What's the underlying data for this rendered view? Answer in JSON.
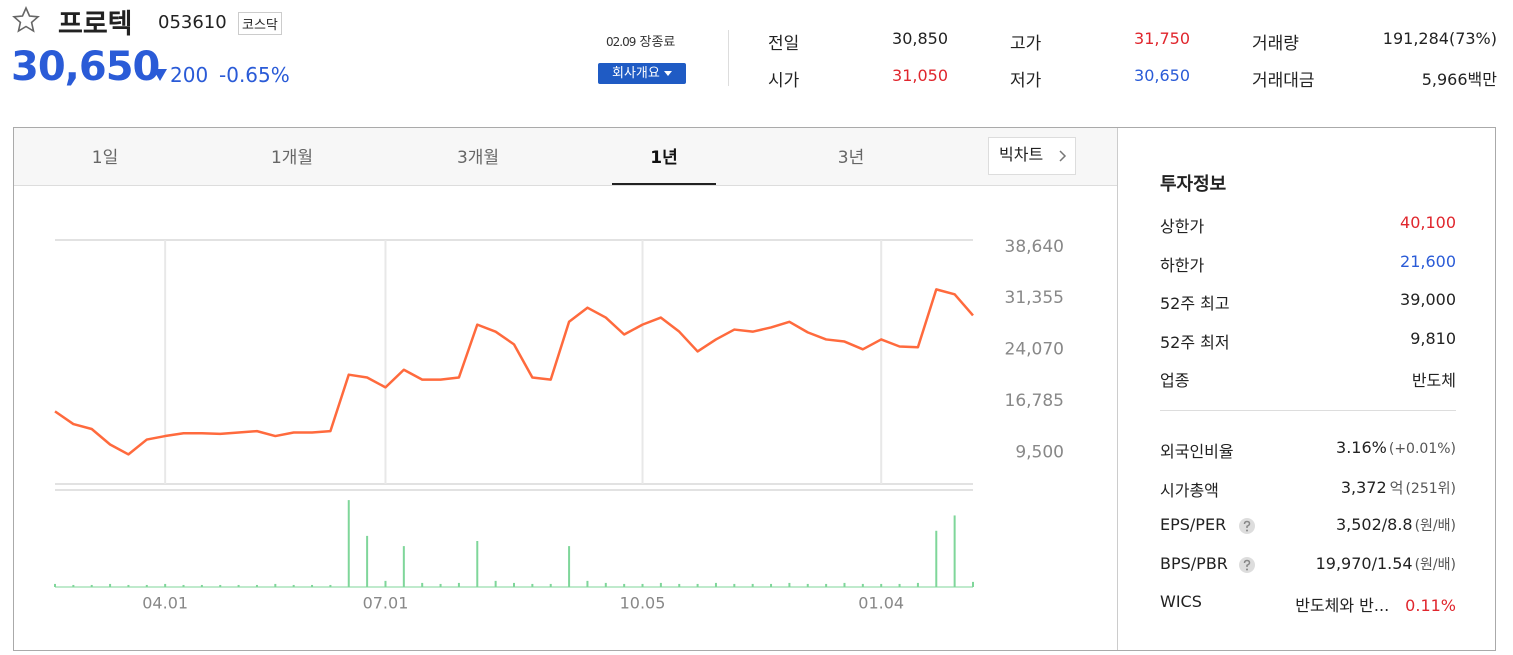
{
  "header": {
    "name": "프로텍",
    "code": "053610",
    "market": "코스닥",
    "price": "30,650",
    "change": "200",
    "change_rate": "-0.65%",
    "date": "02.09",
    "status": "장종료",
    "button": "회사개요"
  },
  "quote": [
    [
      {
        "label": "전일",
        "value": "30,850"
      },
      {
        "label": "고가",
        "value": "31,750",
        "color": "#e0262d"
      },
      {
        "label": "거래량",
        "value": "191,284(73%)"
      }
    ],
    [
      {
        "label": "시가",
        "value": "31,050",
        "color": "#e0262d"
      },
      {
        "label": "저가",
        "value": "30,650",
        "color": "#2a5bd7"
      },
      {
        "label": "거래대금",
        "value": "5,966",
        "unit": "백만"
      }
    ]
  ],
  "tabs": {
    "items": [
      "1일",
      "1개월",
      "3개월",
      "1년",
      "3년"
    ],
    "selected": 3,
    "big_chart": "빅차트"
  },
  "invest": {
    "title": "투자정보",
    "rows": [
      {
        "label": "상한가",
        "value": "40,100",
        "color": "#e0262d"
      },
      {
        "label": "하한가",
        "value": "21,600",
        "color": "#2a5bd7"
      },
      {
        "label": "52주 최고",
        "value": "39,000"
      },
      {
        "label": "52주 최저",
        "value": "9,810"
      },
      {
        "label": "업종",
        "value": "반도체"
      }
    ],
    "rows2": [
      {
        "label": "외국인비율",
        "value": "3.16%",
        "note": "(+0.01%)"
      },
      {
        "label": "시가총액",
        "value": "3,372",
        "unit": "억",
        "note": "(251위)"
      },
      {
        "label": "EPS/PER",
        "help": true,
        "value": "3,502/8.8",
        "note": "(원/배)"
      },
      {
        "label": "BPS/PBR",
        "help": true,
        "value": "19,970/1.54",
        "note": "(원/배)"
      },
      {
        "label": "WICS",
        "value": "반도체와 반...",
        "note": "0.11%",
        "note_color": "#e0262d"
      }
    ]
  },
  "chart_data": {
    "type": "line",
    "categories": [
      null,
      null,
      null,
      null,
      null,
      null,
      "04.01",
      null,
      null,
      null,
      null,
      null,
      null,
      null,
      null,
      null,
      null,
      null,
      "07.01",
      null,
      null,
      null,
      null,
      null,
      null,
      null,
      null,
      null,
      null,
      null,
      null,
      null,
      "10.05",
      null,
      null,
      null,
      null,
      null,
      null,
      null,
      null,
      null,
      null,
      null,
      null,
      "01.04",
      null,
      null,
      null,
      null,
      null
    ],
    "series": [
      {
        "color": "#ff6a3d",
        "values": [
          15300,
          13500,
          12800,
          10600,
          9200,
          11300,
          11800,
          12200,
          12200,
          12100,
          12300,
          12500,
          11800,
          12300,
          12300,
          12500,
          20500,
          20100,
          18700,
          21200,
          19800,
          19800,
          20100,
          27600,
          26600,
          24800,
          20100,
          19800,
          28000,
          30000,
          28600,
          26200,
          27600,
          28600,
          26600,
          23800,
          25500,
          26900,
          26600,
          27200,
          28000,
          26500,
          25500,
          25200,
          24100,
          25500,
          24500,
          24400,
          32600,
          31900,
          28900
        ]
      },
      {
        "color": "#7fd69a",
        "axis": "y2",
        "values": [
          3,
          2,
          2,
          3,
          2,
          2,
          3,
          2,
          2,
          2,
          2,
          2,
          3,
          2,
          2,
          2,
          85,
          50,
          6,
          40,
          4,
          3,
          4,
          45,
          6,
          4,
          3,
          3,
          40,
          6,
          4,
          3,
          3,
          4,
          3,
          3,
          4,
          3,
          3,
          3,
          4,
          3,
          3,
          4,
          3,
          3,
          3,
          4,
          55,
          70,
          5
        ]
      }
    ],
    "ylim": [
      5000,
      39600
    ],
    "yticks": [
      {
        "value": 38640,
        "label": "38,640"
      },
      {
        "value": 31355,
        "label": "31,355"
      },
      {
        "value": 24070,
        "label": "24,070"
      },
      {
        "value": 16785,
        "label": "16,785"
      },
      {
        "value": 9500,
        "label": "9,500"
      }
    ],
    "y2lim": [
      0,
      90
    ],
    "grid": true
  }
}
